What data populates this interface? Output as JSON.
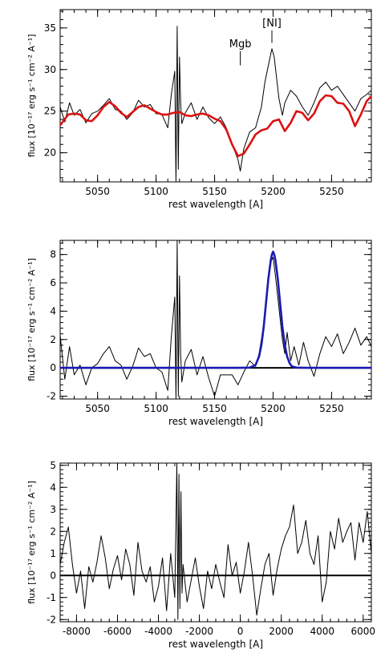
{
  "colors": {
    "model": "#dd1111",
    "gauss": "#1a1ab4",
    "data": "#000000",
    "axes": "#000000"
  },
  "chart_data": [
    {
      "type": "line",
      "xlabel": "rest wavelength [A]",
      "ylabel": "flux [10⁻¹⁷ erg s⁻¹ cm⁻² A⁻¹]",
      "xlim": [
        5018,
        5284
      ],
      "ylim": [
        16.5,
        37.2
      ],
      "xticks": [
        5050,
        5100,
        5150,
        5200,
        5250
      ],
      "yticks": [
        20,
        25,
        30,
        35
      ],
      "annotations": [
        {
          "text": "Mgb",
          "x": 5172,
          "tick_from": 30.5,
          "tick_to": 32.2
        },
        {
          "text": "[NI]",
          "x": 5199,
          "tick_from": 33.2,
          "tick_to": 34.7
        }
      ],
      "series": [
        {
          "style": "data",
          "x": [
            5018,
            5022,
            5026,
            5030,
            5035,
            5040,
            5045,
            5050,
            5055,
            5060,
            5065,
            5070,
            5075,
            5080,
            5085,
            5090,
            5095,
            5100,
            5105,
            5110,
            5113,
            5116,
            5117,
            5118,
            5119,
            5120,
            5121,
            5122,
            5125,
            5130,
            5135,
            5140,
            5145,
            5150,
            5155,
            5160,
            5165,
            5170,
            5172,
            5175,
            5180,
            5185,
            5190,
            5193,
            5196,
            5199,
            5201,
            5203,
            5205,
            5208,
            5210,
            5215,
            5220,
            5225,
            5230,
            5235,
            5240,
            5245,
            5250,
            5255,
            5260,
            5265,
            5270,
            5275,
            5280,
            5284
          ],
          "y": [
            25.5,
            23.7,
            26.0,
            24.5,
            25.2,
            23.6,
            24.7,
            25.0,
            25.7,
            26.5,
            25.2,
            25.0,
            24.0,
            24.8,
            26.3,
            25.5,
            25.8,
            24.7,
            24.6,
            23.0,
            27.0,
            29.8,
            16.5,
            35.2,
            18.0,
            31.5,
            26.0,
            23.5,
            24.8,
            26.0,
            24.0,
            25.5,
            24.2,
            23.5,
            24.3,
            23.0,
            21.0,
            19.2,
            17.8,
            20.5,
            22.5,
            23.0,
            25.5,
            28.5,
            30.5,
            32.5,
            31.5,
            29.0,
            26.5,
            24.5,
            26.0,
            27.5,
            26.8,
            25.5,
            24.5,
            26.0,
            27.8,
            28.5,
            27.5,
            28.0,
            27.0,
            26.0,
            25.0,
            26.5,
            27.0,
            27.5
          ]
        },
        {
          "style": "model",
          "x": [
            5018,
            5025,
            5030,
            5035,
            5040,
            5045,
            5050,
            5055,
            5060,
            5065,
            5070,
            5075,
            5080,
            5085,
            5090,
            5095,
            5100,
            5105,
            5110,
            5115,
            5120,
            5125,
            5130,
            5135,
            5140,
            5145,
            5150,
            5155,
            5160,
            5165,
            5170,
            5175,
            5180,
            5185,
            5190,
            5195,
            5200,
            5205,
            5210,
            5215,
            5220,
            5225,
            5230,
            5235,
            5240,
            5245,
            5250,
            5255,
            5260,
            5265,
            5270,
            5275,
            5280,
            5284
          ],
          "y": [
            23.3,
            24.6,
            24.7,
            24.6,
            23.9,
            23.8,
            24.5,
            25.5,
            26.1,
            25.6,
            24.8,
            24.3,
            24.9,
            25.5,
            25.7,
            25.3,
            24.9,
            24.6,
            24.6,
            24.8,
            24.9,
            24.5,
            24.4,
            24.6,
            24.7,
            24.5,
            24.1,
            23.8,
            22.8,
            21.0,
            19.6,
            19.9,
            21.0,
            22.2,
            22.7,
            22.9,
            23.8,
            24.0,
            22.6,
            23.6,
            25.0,
            24.8,
            23.9,
            24.7,
            26.2,
            26.9,
            26.8,
            26.0,
            25.9,
            25.0,
            23.2,
            24.6,
            26.2,
            26.8
          ]
        }
      ]
    },
    {
      "type": "line",
      "xlabel": "rest wavelength [A]",
      "ylabel": "flux [10⁻¹⁷ erg s⁻¹ cm⁻² A⁻¹]",
      "xlim": [
        5018,
        5284
      ],
      "ylim": [
        -2.2,
        9.0
      ],
      "xticks": [
        5050,
        5100,
        5150,
        5200,
        5250
      ],
      "yticks": [
        -2,
        0,
        2,
        4,
        6,
        8
      ],
      "zero_line": true,
      "series": [
        {
          "style": "data",
          "x": [
            5018,
            5022,
            5026,
            5030,
            5035,
            5040,
            5045,
            5050,
            5055,
            5060,
            5065,
            5070,
            5075,
            5080,
            5085,
            5090,
            5095,
            5100,
            5105,
            5110,
            5113,
            5116,
            5117,
            5118,
            5119,
            5120,
            5121,
            5122,
            5125,
            5130,
            5135,
            5140,
            5145,
            5150,
            5155,
            5160,
            5165,
            5170,
            5175,
            5180,
            5185,
            5188,
            5191,
            5194,
            5196,
            5198,
            5200,
            5202,
            5204,
            5206,
            5208,
            5210,
            5212,
            5215,
            5218,
            5222,
            5226,
            5230,
            5235,
            5240,
            5245,
            5250,
            5255,
            5260,
            5265,
            5270,
            5275,
            5280,
            5284
          ],
          "y": [
            2.3,
            -0.8,
            1.5,
            -0.5,
            0.2,
            -1.2,
            0.0,
            0.3,
            1.0,
            1.5,
            0.5,
            0.2,
            -0.8,
            0.1,
            1.4,
            0.8,
            1.0,
            0.0,
            -0.3,
            -1.6,
            2.2,
            5.0,
            -2.2,
            9.0,
            -2.0,
            6.5,
            1.0,
            -1.0,
            0.5,
            1.3,
            -0.5,
            0.8,
            -0.7,
            -2.0,
            -0.5,
            -0.5,
            -0.5,
            -1.2,
            -0.3,
            0.5,
            0.1,
            1.0,
            2.5,
            4.5,
            6.0,
            7.5,
            7.8,
            6.5,
            5.0,
            3.5,
            2.0,
            1.0,
            2.5,
            0.5,
            1.5,
            0.2,
            1.8,
            0.5,
            -0.6,
            1.0,
            2.2,
            1.5,
            2.4,
            1.0,
            1.8,
            2.8,
            1.6,
            2.2,
            1.5
          ]
        },
        {
          "style": "gauss",
          "x": [
            5018,
            5170,
            5180,
            5185,
            5188,
            5190,
            5192,
            5194,
            5196,
            5198,
            5199,
            5200,
            5201,
            5202,
            5204,
            5206,
            5208,
            5210,
            5212,
            5214,
            5216,
            5220,
            5230,
            5284
          ],
          "y": [
            0,
            0,
            0.02,
            0.2,
            0.8,
            1.6,
            2.9,
            4.6,
            6.3,
            7.6,
            8.0,
            8.2,
            8.0,
            7.6,
            6.3,
            4.6,
            2.9,
            1.6,
            0.8,
            0.35,
            0.1,
            0.02,
            0,
            0
          ]
        }
      ]
    },
    {
      "type": "line",
      "xlabel": "rest wavelength [A]",
      "ylabel": "flux [10⁻¹⁷ erg s⁻¹ cm⁻² A⁻¹]",
      "xlim": [
        -8800,
        6400
      ],
      "ylim": [
        -2.1,
        5.1
      ],
      "xticks": [
        -8000,
        -6000,
        -4000,
        -2000,
        0,
        2000,
        4000,
        6000
      ],
      "yticks": [
        -2,
        -1,
        0,
        1,
        2,
        3,
        4,
        5
      ],
      "zero_line": true,
      "series": [
        {
          "style": "data",
          "x": [
            -8800,
            -8600,
            -8400,
            -8200,
            -8000,
            -7800,
            -7600,
            -7400,
            -7200,
            -7000,
            -6800,
            -6600,
            -6400,
            -6200,
            -6000,
            -5800,
            -5600,
            -5400,
            -5200,
            -5000,
            -4800,
            -4600,
            -4400,
            -4200,
            -4000,
            -3800,
            -3600,
            -3400,
            -3200,
            -3100,
            -3050,
            -3000,
            -2950,
            -2900,
            -2850,
            -2800,
            -2600,
            -2400,
            -2200,
            -2000,
            -1800,
            -1600,
            -1400,
            -1200,
            -1000,
            -800,
            -600,
            -400,
            -200,
            0,
            200,
            400,
            600,
            800,
            1000,
            1200,
            1400,
            1600,
            1800,
            2000,
            2200,
            2400,
            2600,
            2800,
            3000,
            3200,
            3400,
            3600,
            3800,
            4000,
            4200,
            4400,
            4600,
            4800,
            5000,
            5200,
            5400,
            5600,
            5800,
            6000,
            6200,
            6400
          ],
          "y": [
            0.5,
            1.5,
            2.2,
            0.5,
            -0.8,
            0.2,
            -1.5,
            0.4,
            -0.3,
            0.6,
            1.8,
            0.8,
            -0.6,
            0.3,
            0.9,
            -0.2,
            1.2,
            0.5,
            -0.9,
            1.5,
            0.2,
            -0.3,
            0.4,
            -1.2,
            -0.5,
            0.8,
            -1.6,
            1.0,
            -1.0,
            5.1,
            -2.0,
            4.6,
            -1.5,
            3.8,
            -0.8,
            0.5,
            -1.2,
            -0.2,
            0.8,
            -0.5,
            -1.5,
            0.2,
            -0.6,
            0.5,
            -0.3,
            -1.0,
            1.4,
            0.0,
            0.6,
            -0.8,
            0.2,
            1.5,
            0.0,
            -1.8,
            -0.6,
            0.5,
            1.0,
            -0.9,
            0.3,
            1.2,
            1.8,
            2.2,
            3.2,
            1.0,
            1.5,
            2.5,
            1.0,
            0.5,
            1.8,
            -1.2,
            -0.3,
            2.0,
            1.2,
            2.6,
            1.5,
            2.0,
            2.4,
            0.7,
            2.4,
            1.5,
            2.9,
            1.0
          ]
        }
      ]
    }
  ]
}
